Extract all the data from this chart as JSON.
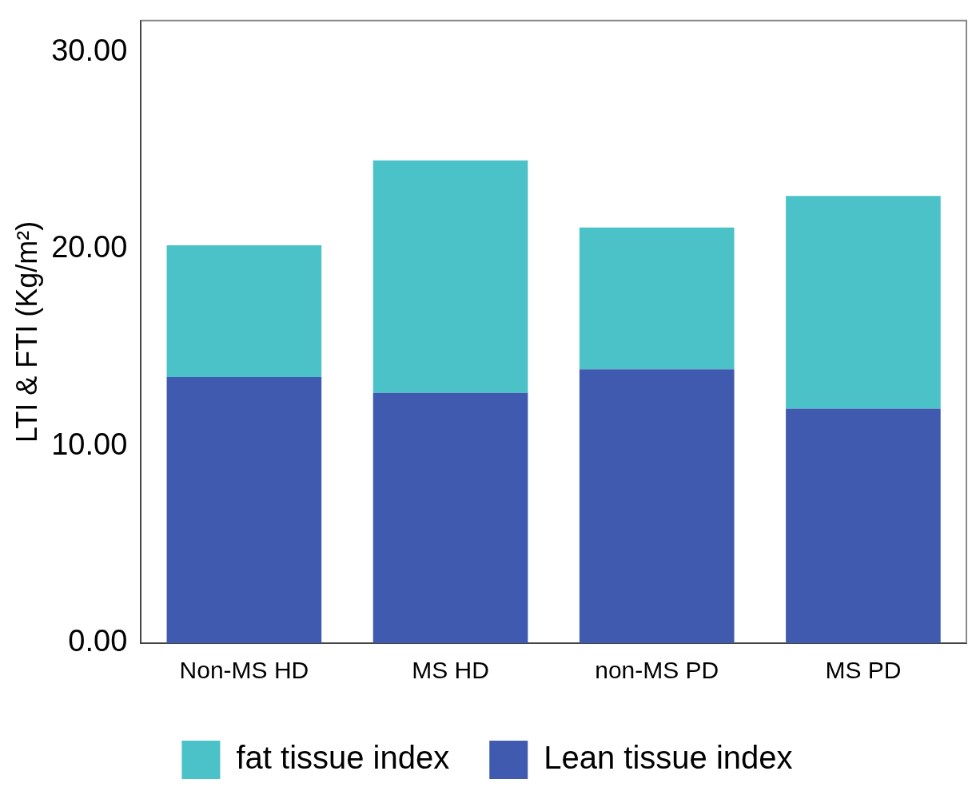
{
  "chart_data": {
    "type": "bar",
    "ylabel": "LTI & FTI (Kg/m²)",
    "categories": [
      "Non-MS HD",
      "MS HD",
      "non-MS PD",
      "MS PD"
    ],
    "stacked": true,
    "series": [
      {
        "name": "Lean tissue index",
        "color": "#3f5aae",
        "values": [
          13.5,
          12.7,
          13.9,
          11.9
        ]
      },
      {
        "name": "fat tissue index",
        "color": "#4ac2c8",
        "values": [
          6.7,
          11.8,
          7.2,
          10.8
        ]
      }
    ],
    "ylim": [
      0,
      31.6
    ],
    "yticks": [
      {
        "value": 0,
        "label": "0.00"
      },
      {
        "value": 10,
        "label": "10.00"
      },
      {
        "value": 20,
        "label": "20.00"
      },
      {
        "value": 30,
        "label": "30.00"
      }
    ],
    "grid": false,
    "legend": "bottom"
  }
}
